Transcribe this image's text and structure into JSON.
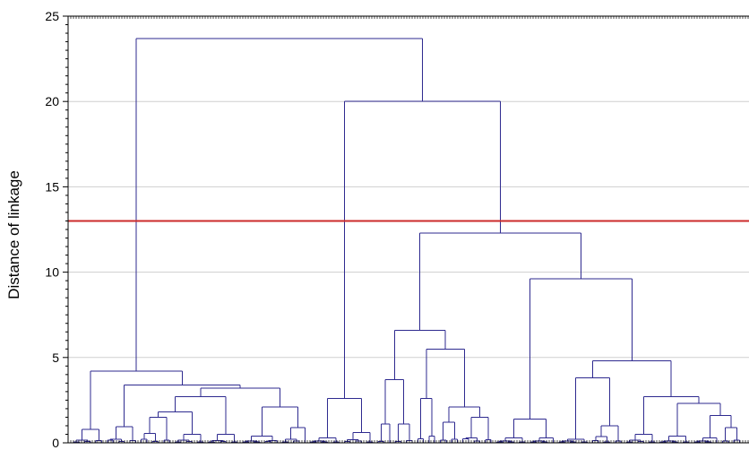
{
  "chart_data": {
    "type": "dendrogram",
    "title": "",
    "xlabel": "",
    "ylabel": "Distance of linkage",
    "ylim": [
      0,
      25
    ],
    "y_ticks": [
      0,
      5,
      10,
      15,
      20,
      25
    ],
    "grid": "horizontal",
    "leaf_count": 119,
    "cut_line": {
      "value": 13,
      "color": "#cc2b2b"
    },
    "link_color": "#2e2a8f",
    "merges": [
      {
        "name": "root",
        "height": 23.7
      },
      {
        "name": "left-major-cluster",
        "height": 4.2
      },
      {
        "name": "right-major-cluster",
        "height": 20.0
      },
      {
        "name": "middle-cluster",
        "height": 2.6
      },
      {
        "name": "right-subcluster",
        "height": 12.3
      },
      {
        "name": "right-subcluster-a",
        "height": 6.6
      },
      {
        "name": "right-subcluster-b",
        "height": 9.6
      },
      {
        "name": "right-subcluster-b2",
        "height": 4.8
      }
    ]
  }
}
